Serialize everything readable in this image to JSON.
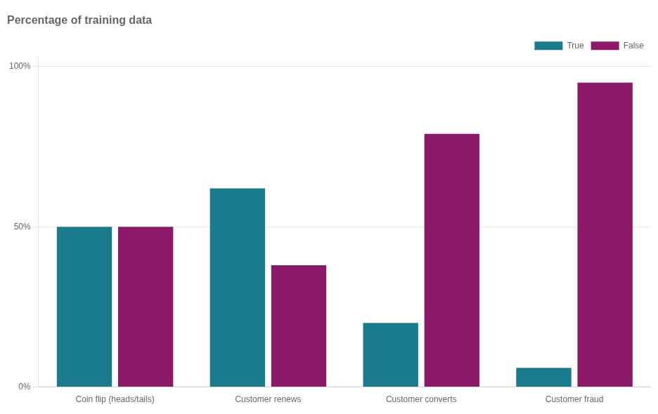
{
  "chart_data": {
    "type": "bar",
    "title": "Percentage of training data",
    "categories": [
      "Coin flip (heads/tails)",
      "Customer renews",
      "Customer converts",
      "Customer fraud"
    ],
    "series": [
      {
        "name": "True",
        "color": "#1b7a8c",
        "values": [
          50,
          62,
          20,
          6
        ]
      },
      {
        "name": "False",
        "color": "#8b1a6b",
        "values": [
          50,
          38,
          79,
          95
        ]
      }
    ],
    "ylim": [
      0,
      103
    ],
    "yticks": [
      {
        "value": 0,
        "label": "0%"
      },
      {
        "value": 50,
        "label": "50%"
      },
      {
        "value": 100,
        "label": "100%"
      }
    ],
    "grid": true,
    "legend": "upper right"
  }
}
